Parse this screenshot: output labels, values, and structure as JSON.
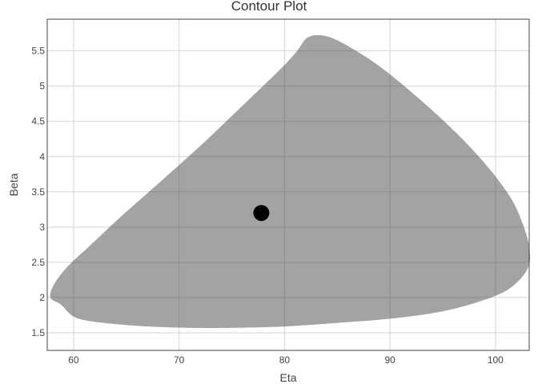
{
  "chart_data": {
    "type": "contour",
    "title": "Contour Plot",
    "xlabel": "Eta",
    "ylabel": "Beta",
    "xlim": [
      57.5,
      103.2
    ],
    "ylim": [
      1.25,
      5.95
    ],
    "grid": true,
    "x_ticks": [
      60,
      70,
      80,
      90,
      100
    ],
    "y_ticks": [
      1.5,
      2,
      2.5,
      3,
      3.5,
      4,
      4.5,
      5,
      5.5
    ],
    "y_tick_labels": [
      "1.5",
      "2",
      "2.5",
      "3",
      "3.5",
      "4",
      "4.5",
      "5",
      "5.5"
    ],
    "contour_color": "#a3a3a3",
    "point_color": "#000000",
    "contour_region": [
      [
        58.8,
        1.9
      ],
      [
        57.8,
        2.0
      ],
      [
        58.2,
        2.2
      ],
      [
        59.5,
        2.45
      ],
      [
        61.5,
        2.73
      ],
      [
        64.5,
        3.15
      ],
      [
        68.5,
        3.68
      ],
      [
        72.5,
        4.22
      ],
      [
        76.0,
        4.72
      ],
      [
        78.3,
        5.05
      ],
      [
        80.0,
        5.3
      ],
      [
        81.2,
        5.5
      ],
      [
        82.3,
        5.7
      ],
      [
        84.2,
        5.7
      ],
      [
        86.8,
        5.5
      ],
      [
        89.3,
        5.25
      ],
      [
        92.0,
        4.92
      ],
      [
        95.0,
        4.52
      ],
      [
        97.7,
        4.12
      ],
      [
        100.0,
        3.72
      ],
      [
        101.7,
        3.35
      ],
      [
        102.7,
        3.0
      ],
      [
        103.2,
        2.72
      ],
      [
        103.2,
        2.47
      ],
      [
        102.4,
        2.27
      ],
      [
        100.8,
        2.08
      ],
      [
        98.0,
        1.92
      ],
      [
        94.5,
        1.79
      ],
      [
        90.0,
        1.7
      ],
      [
        85.0,
        1.64
      ],
      [
        80.0,
        1.59
      ],
      [
        75.0,
        1.57
      ],
      [
        71.0,
        1.57
      ],
      [
        67.0,
        1.59
      ],
      [
        63.5,
        1.63
      ],
      [
        61.0,
        1.68
      ],
      [
        59.8,
        1.75
      ]
    ],
    "point": {
      "x": 77.8,
      "y": 3.2
    }
  }
}
